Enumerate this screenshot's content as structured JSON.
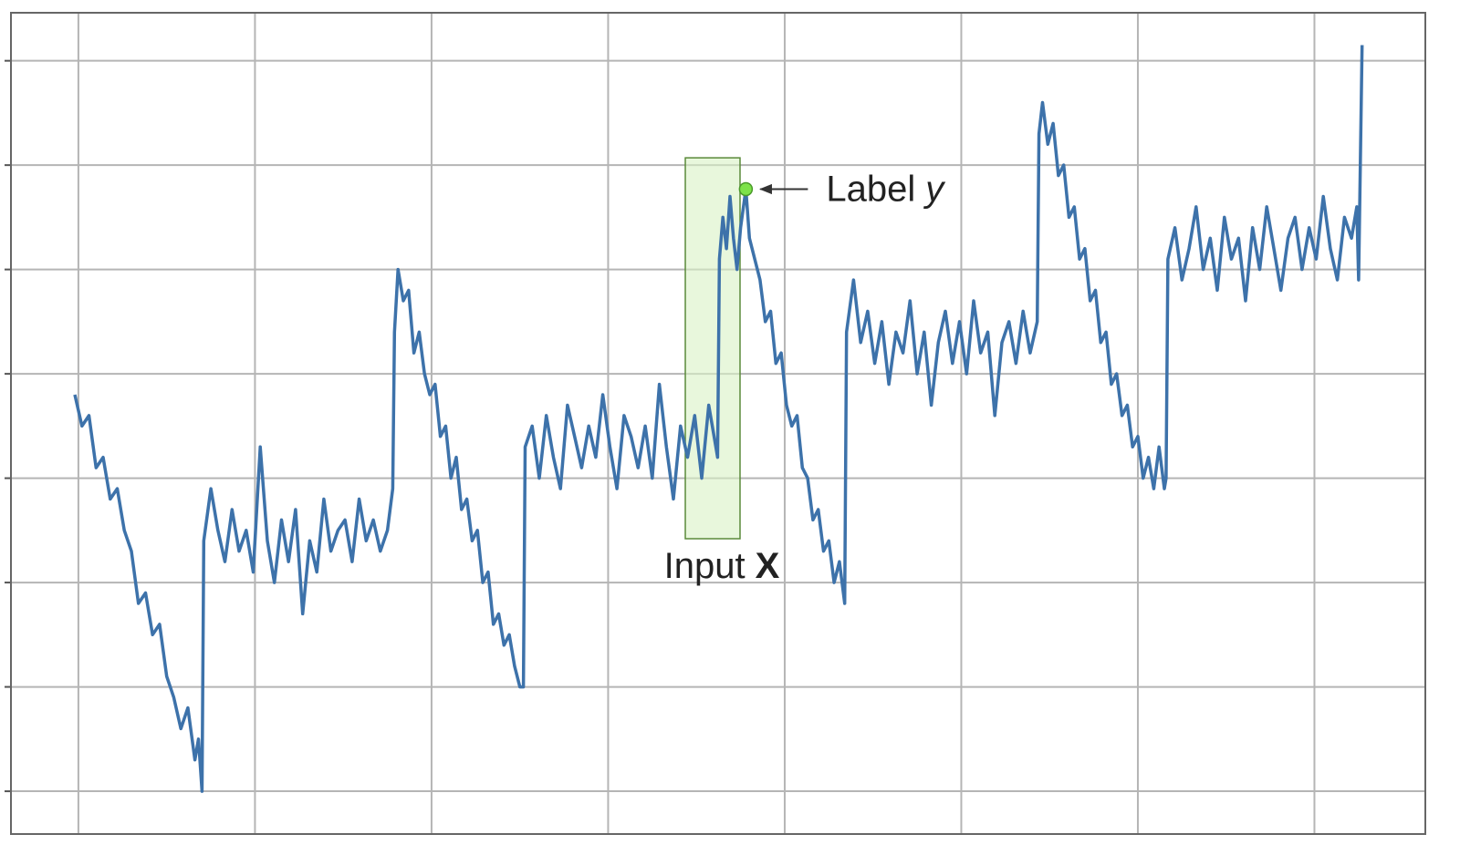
{
  "chart_data": {
    "type": "line",
    "color": "#3d72aa",
    "grid": true,
    "xlim": [
      -38.2,
      762.8
    ],
    "ylim": [
      -0.41,
      7.46
    ],
    "xticks": [
      0,
      100,
      200,
      300,
      400,
      500,
      600,
      700
    ],
    "yticks": [
      0,
      1,
      2,
      3,
      4,
      5,
      6,
      7
    ],
    "x": [
      -2,
      2,
      6,
      10,
      14,
      18,
      22,
      26,
      30,
      34,
      38,
      42,
      46,
      50,
      54,
      58,
      62,
      66,
      68,
      70,
      71,
      75,
      79,
      83,
      87,
      91,
      95,
      99,
      103,
      107,
      111,
      115,
      119,
      123,
      127,
      131,
      135,
      139,
      143,
      147,
      151,
      155,
      159,
      163,
      167,
      171,
      175,
      178,
      179,
      181,
      184,
      187,
      190,
      193,
      196,
      199,
      202,
      205,
      208,
      211,
      214,
      217,
      220,
      223,
      226,
      229,
      232,
      235,
      238,
      241,
      244,
      247,
      250,
      252,
      253,
      257,
      261,
      265,
      269,
      273,
      277,
      281,
      285,
      289,
      293,
      297,
      301,
      305,
      309,
      313,
      317,
      321,
      325,
      329,
      333,
      337,
      341,
      345,
      349,
      353,
      357,
      361,
      362,
      363,
      365,
      367,
      369,
      371,
      373,
      375,
      378,
      380,
      383,
      386,
      389,
      392,
      395,
      398,
      401,
      404,
      407,
      410,
      413,
      416,
      419,
      422,
      425,
      428,
      431,
      434,
      435,
      439,
      443,
      447,
      451,
      455,
      459,
      463,
      467,
      471,
      475,
      479,
      483,
      487,
      491,
      495,
      499,
      503,
      507,
      511,
      515,
      519,
      523,
      527,
      531,
      535,
      539,
      543,
      544,
      546,
      549,
      552,
      555,
      558,
      561,
      564,
      567,
      570,
      573,
      576,
      579,
      582,
      585,
      588,
      591,
      594,
      597,
      600,
      603,
      606,
      609,
      612,
      615,
      616,
      617,
      621,
      625,
      629,
      633,
      637,
      641,
      645,
      649,
      653,
      657,
      661,
      665,
      669,
      673,
      677,
      681,
      685,
      689,
      693,
      697,
      701,
      705,
      709,
      713,
      717,
      721,
      724,
      725,
      727
    ],
    "values": [
      3.8,
      3.5,
      3.6,
      3.1,
      3.2,
      2.8,
      2.9,
      2.5,
      2.3,
      1.8,
      1.9,
      1.5,
      1.6,
      1.1,
      0.9,
      0.6,
      0.8,
      0.3,
      0.5,
      0.0,
      2.4,
      2.9,
      2.5,
      2.2,
      2.7,
      2.3,
      2.5,
      2.1,
      3.3,
      2.4,
      2.0,
      2.6,
      2.2,
      2.7,
      1.7,
      2.4,
      2.1,
      2.8,
      2.3,
      2.5,
      2.6,
      2.2,
      2.8,
      2.4,
      2.6,
      2.3,
      2.5,
      2.9,
      4.4,
      5.0,
      4.7,
      4.8,
      4.2,
      4.4,
      4.0,
      3.8,
      3.9,
      3.4,
      3.5,
      3.0,
      3.2,
      2.7,
      2.8,
      2.4,
      2.5,
      2.0,
      2.1,
      1.6,
      1.7,
      1.4,
      1.5,
      1.2,
      1.0,
      1.0,
      3.3,
      3.5,
      3.0,
      3.6,
      3.2,
      2.9,
      3.7,
      3.4,
      3.1,
      3.5,
      3.2,
      3.8,
      3.3,
      2.9,
      3.6,
      3.4,
      3.1,
      3.5,
      3.0,
      3.9,
      3.3,
      2.8,
      3.5,
      3.2,
      3.6,
      3.0,
      3.7,
      3.3,
      3.2,
      5.1,
      5.5,
      5.2,
      5.7,
      5.3,
      5.0,
      5.4,
      5.77,
      5.3,
      5.1,
      4.9,
      4.5,
      4.6,
      4.1,
      4.2,
      3.7,
      3.5,
      3.6,
      3.1,
      3.0,
      2.6,
      2.7,
      2.3,
      2.4,
      2.0,
      2.2,
      1.8,
      4.4,
      4.9,
      4.3,
      4.6,
      4.1,
      4.5,
      3.9,
      4.4,
      4.2,
      4.7,
      4.0,
      4.4,
      3.7,
      4.3,
      4.6,
      4.1,
      4.5,
      4.0,
      4.7,
      4.2,
      4.4,
      3.6,
      4.3,
      4.5,
      4.1,
      4.6,
      4.2,
      4.5,
      6.3,
      6.6,
      6.2,
      6.4,
      5.9,
      6.0,
      5.5,
      5.6,
      5.1,
      5.2,
      4.7,
      4.8,
      4.3,
      4.4,
      3.9,
      4.0,
      3.6,
      3.7,
      3.3,
      3.4,
      3.0,
      3.2,
      2.9,
      3.3,
      2.9,
      3.0,
      5.1,
      5.4,
      4.9,
      5.2,
      5.6,
      5.0,
      5.3,
      4.8,
      5.5,
      5.1,
      5.3,
      4.7,
      5.4,
      5.0,
      5.6,
      5.2,
      4.8,
      5.3,
      5.5,
      5.0,
      5.4,
      5.1,
      5.7,
      5.2,
      4.9,
      5.5,
      5.3,
      5.6,
      4.9,
      7.15
    ],
    "annotations": {
      "label": {
        "text": "Label",
        "var": "y",
        "x": 378,
        "y": 5.77
      },
      "input": {
        "text": "Input",
        "var": "X",
        "x": [
          343.7,
          374.7
        ],
        "y": [
          2.42,
          6.07
        ]
      }
    }
  }
}
